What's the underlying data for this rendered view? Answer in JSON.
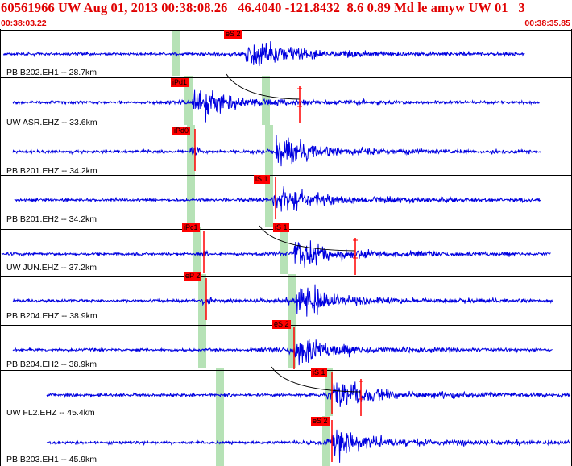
{
  "header": {
    "title": "60561966 UW Aug 01, 2013 00:38:08.26   46.4040 -121.8432  8.6 0.89 Md le amyw UW 01   3",
    "time_start": "00:38:03.22",
    "time_end": "00:38:35.85"
  },
  "colors": {
    "trace": "#0000e0",
    "pick_marker": "#ff0000",
    "phase_window": "#b6e2b6",
    "grid_line": "#000000",
    "header_text": "#e00000"
  },
  "traces": [
    {
      "label": "PB B202.EH1 -- 28.7km",
      "picks": [
        "eS 2"
      ]
    },
    {
      "label": "UW ASR.EHZ -- 33.6km",
      "picks": [
        "iPd1"
      ]
    },
    {
      "label": "PB B201.EHZ -- 34.2km",
      "picks": [
        "iPd0"
      ]
    },
    {
      "label": "PB B201.EH2 -- 34.2km",
      "picks": [
        "iS 1"
      ]
    },
    {
      "label": "UW JUN.EHZ -- 37.2km",
      "picks": [
        "iPc1",
        "iS 1"
      ]
    },
    {
      "label": "PB B204.EHZ -- 38.9km",
      "picks": [
        "eP 2"
      ]
    },
    {
      "label": "PB B204.EH2 -- 38.9km",
      "picks": [
        "eS 2"
      ]
    },
    {
      "label": "UW FL2.EHZ -- 45.4km",
      "picks": [
        "iS 1"
      ]
    },
    {
      "label": "PB B203.EH1 -- 45.9km",
      "picks": [
        "eS 2"
      ]
    }
  ]
}
